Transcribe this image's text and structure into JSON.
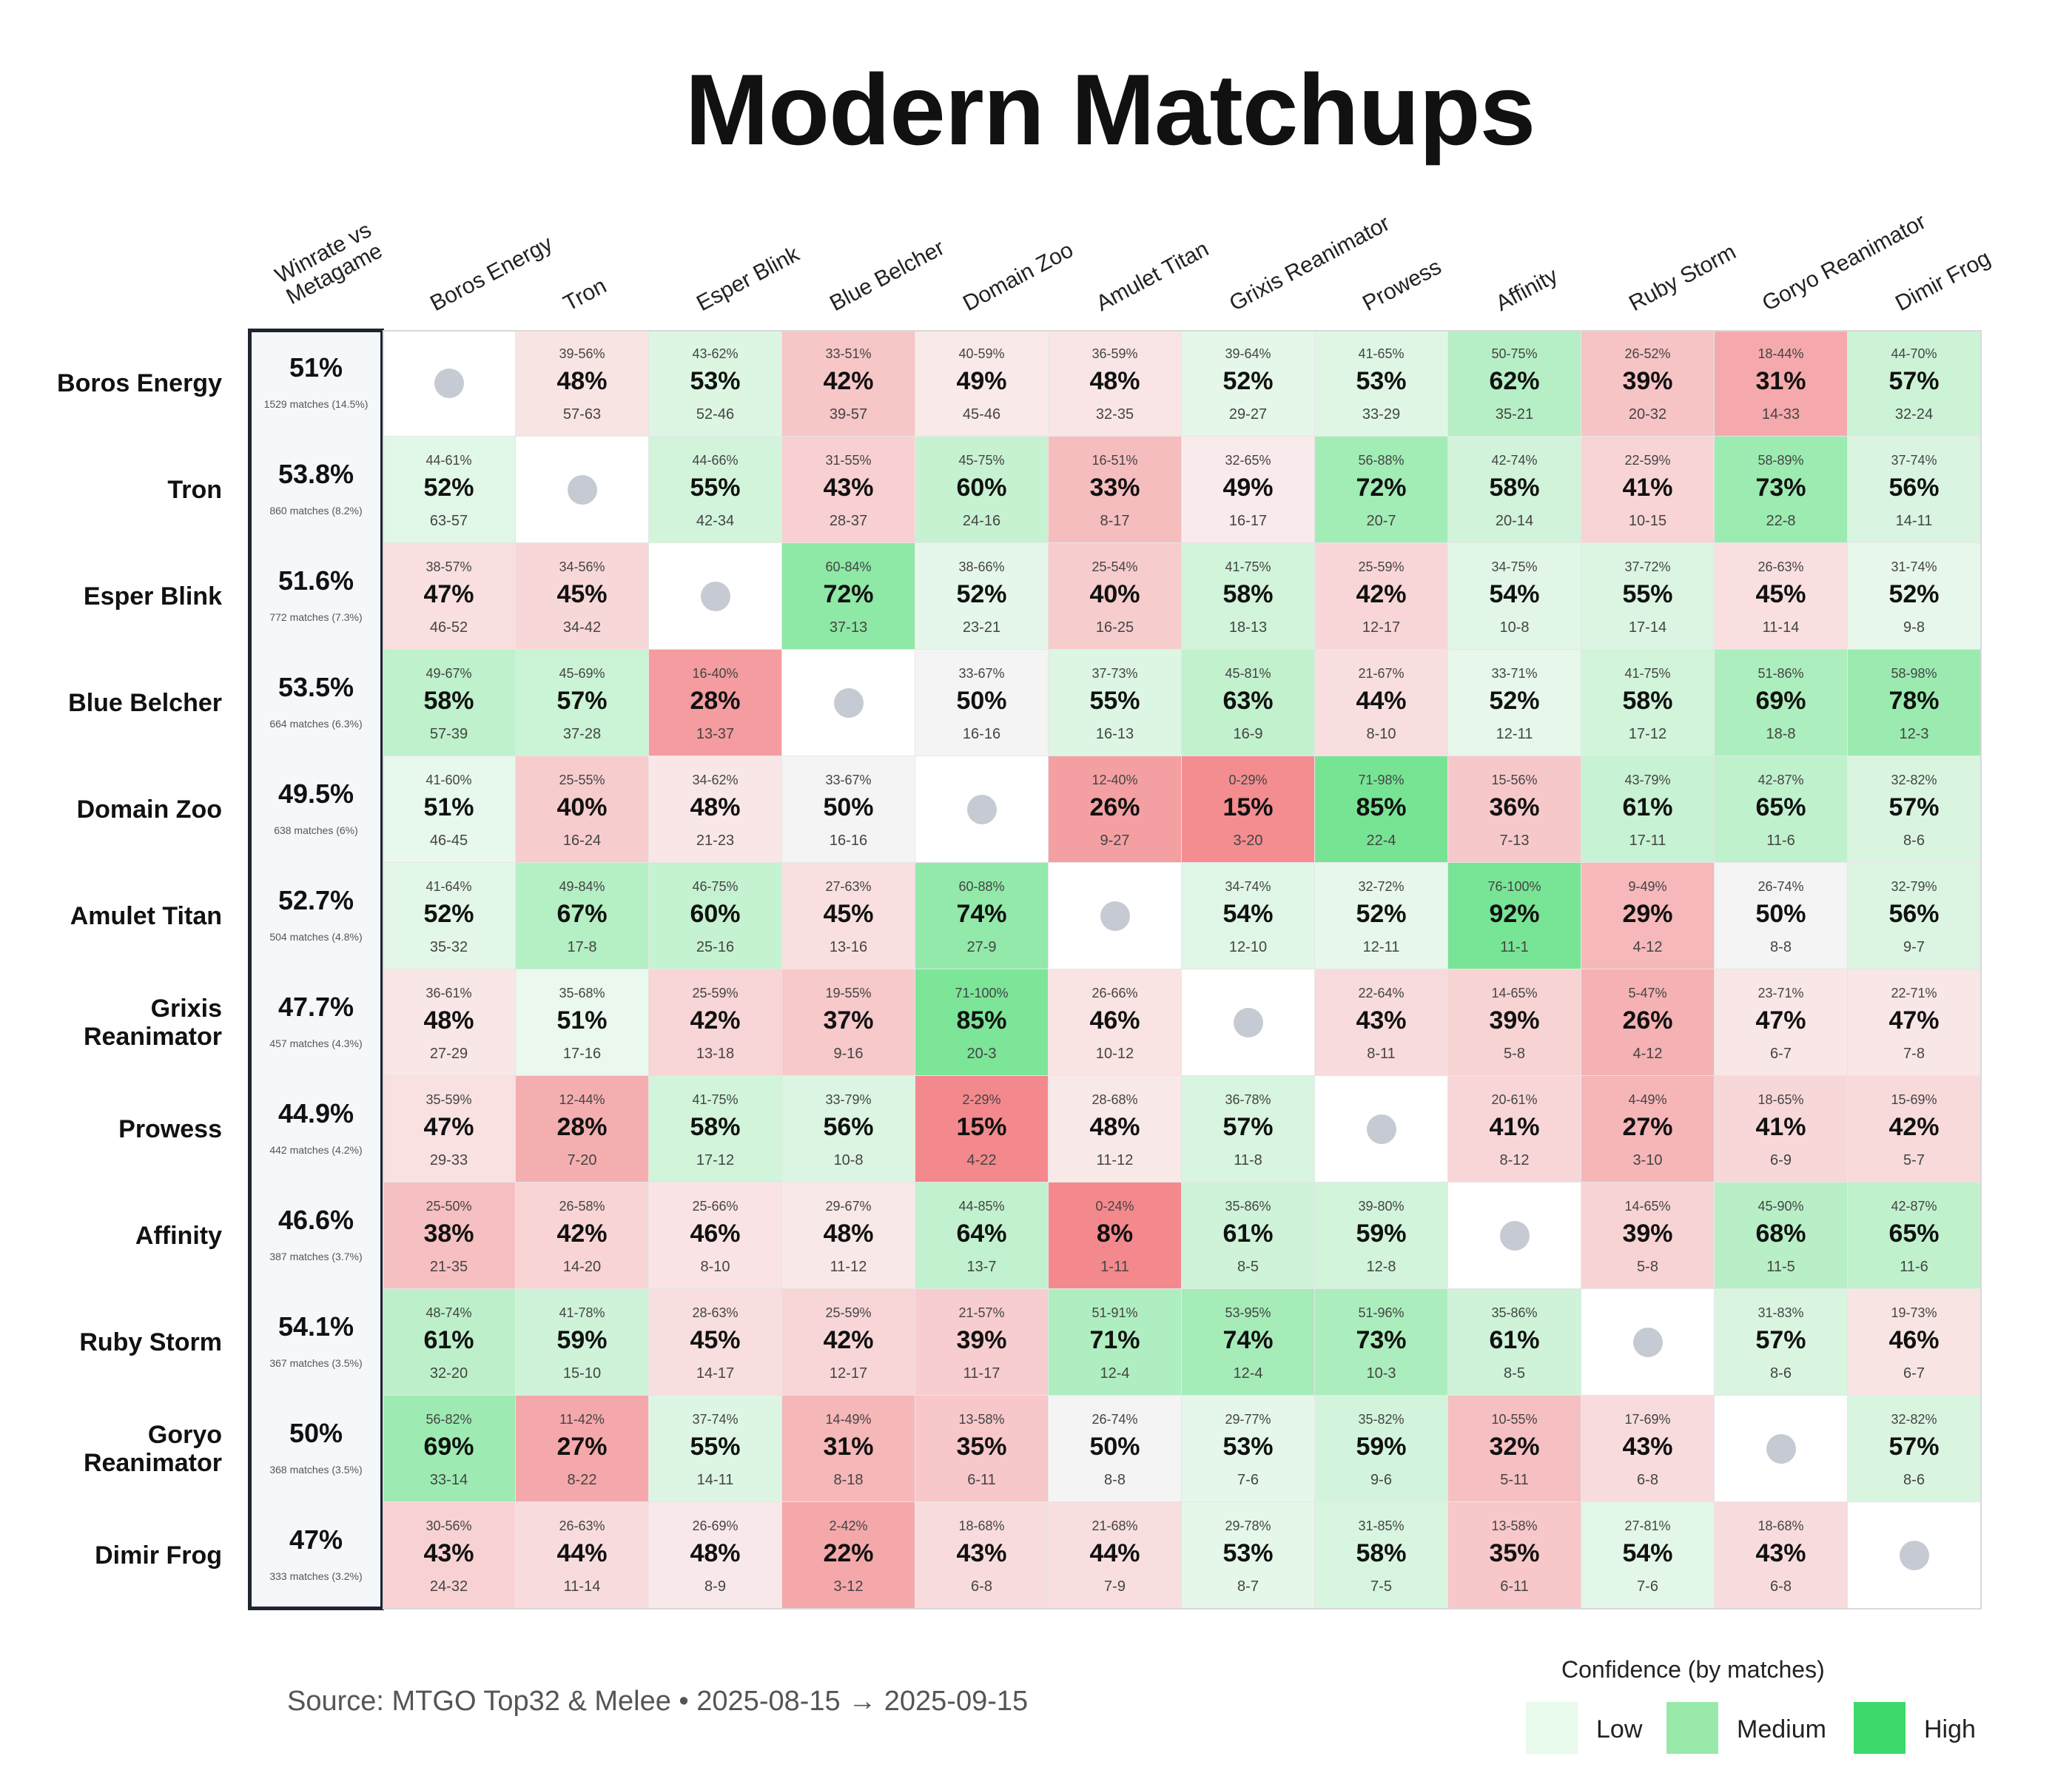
{
  "title": "Modern Matchups",
  "source_text": "Source: MTGO Top32 & Melee  •  2025-08-15 → 2025-09-15",
  "legend": {
    "title": "Confidence (by matches)",
    "items": [
      {
        "label": "Low",
        "color": "#e8faec"
      },
      {
        "label": "Medium",
        "color": "#98e9aa"
      },
      {
        "label": "High",
        "color": "#3dd96a"
      }
    ]
  },
  "chart_data": {
    "type": "heatmap",
    "winrate_header": [
      "Winrate vs",
      "Metagame"
    ],
    "columns": [
      "Boros Energy",
      "Tron",
      "Esper Blink",
      "Blue Belcher",
      "Domain Zoo",
      "Amulet Titan",
      "Grixis Reanimator",
      "Prowess",
      "Affinity",
      "Ruby Storm",
      "Goryo Reanimator",
      "Dimir Frog"
    ],
    "rows": [
      {
        "label": "Boros Energy",
        "label_lines": [
          "Boros Energy"
        ],
        "winrate": "51%",
        "matches": "1529 matches (14.5%)",
        "cells": [
          null,
          {
            "ci": "39-56%",
            "pct": 48,
            "rec": "57-63"
          },
          {
            "ci": "43-62%",
            "pct": 53,
            "rec": "52-46"
          },
          {
            "ci": "33-51%",
            "pct": 42,
            "rec": "39-57"
          },
          {
            "ci": "40-59%",
            "pct": 49,
            "rec": "45-46"
          },
          {
            "ci": "36-59%",
            "pct": 48,
            "rec": "32-35"
          },
          {
            "ci": "39-64%",
            "pct": 52,
            "rec": "29-27"
          },
          {
            "ci": "41-65%",
            "pct": 53,
            "rec": "33-29"
          },
          {
            "ci": "50-75%",
            "pct": 62,
            "rec": "35-21"
          },
          {
            "ci": "26-52%",
            "pct": 39,
            "rec": "20-32"
          },
          {
            "ci": "18-44%",
            "pct": 31,
            "rec": "14-33"
          },
          {
            "ci": "44-70%",
            "pct": 57,
            "rec": "32-24"
          }
        ]
      },
      {
        "label": "Tron",
        "label_lines": [
          "Tron"
        ],
        "winrate": "53.8%",
        "matches": "860 matches (8.2%)",
        "cells": [
          {
            "ci": "44-61%",
            "pct": 52,
            "rec": "63-57"
          },
          null,
          {
            "ci": "44-66%",
            "pct": 55,
            "rec": "42-34"
          },
          {
            "ci": "31-55%",
            "pct": 43,
            "rec": "28-37"
          },
          {
            "ci": "45-75%",
            "pct": 60,
            "rec": "24-16"
          },
          {
            "ci": "16-51%",
            "pct": 33,
            "rec": "8-17"
          },
          {
            "ci": "32-65%",
            "pct": 49,
            "rec": "16-17"
          },
          {
            "ci": "56-88%",
            "pct": 72,
            "rec": "20-7"
          },
          {
            "ci": "42-74%",
            "pct": 58,
            "rec": "20-14"
          },
          {
            "ci": "22-59%",
            "pct": 41,
            "rec": "10-15"
          },
          {
            "ci": "58-89%",
            "pct": 73,
            "rec": "22-8"
          },
          {
            "ci": "37-74%",
            "pct": 56,
            "rec": "14-11"
          }
        ]
      },
      {
        "label": "Esper Blink",
        "label_lines": [
          "Esper Blink"
        ],
        "winrate": "51.6%",
        "matches": "772 matches (7.3%)",
        "cells": [
          {
            "ci": "38-57%",
            "pct": 47,
            "rec": "46-52"
          },
          {
            "ci": "34-56%",
            "pct": 45,
            "rec": "34-42"
          },
          null,
          {
            "ci": "60-84%",
            "pct": 72,
            "rec": "37-13"
          },
          {
            "ci": "38-66%",
            "pct": 52,
            "rec": "23-21"
          },
          {
            "ci": "25-54%",
            "pct": 40,
            "rec": "16-25"
          },
          {
            "ci": "41-75%",
            "pct": 58,
            "rec": "18-13"
          },
          {
            "ci": "25-59%",
            "pct": 42,
            "rec": "12-17"
          },
          {
            "ci": "34-75%",
            "pct": 54,
            "rec": "10-8"
          },
          {
            "ci": "37-72%",
            "pct": 55,
            "rec": "17-14"
          },
          {
            "ci": "26-63%",
            "pct": 45,
            "rec": "11-14"
          },
          {
            "ci": "31-74%",
            "pct": 52,
            "rec": "9-8"
          }
        ]
      },
      {
        "label": "Blue Belcher",
        "label_lines": [
          "Blue Belcher"
        ],
        "winrate": "53.5%",
        "matches": "664 matches (6.3%)",
        "cells": [
          {
            "ci": "49-67%",
            "pct": 58,
            "rec": "57-39"
          },
          {
            "ci": "45-69%",
            "pct": 57,
            "rec": "37-28"
          },
          {
            "ci": "16-40%",
            "pct": 28,
            "rec": "13-37"
          },
          null,
          {
            "ci": "33-67%",
            "pct": 50,
            "rec": "16-16"
          },
          {
            "ci": "37-73%",
            "pct": 55,
            "rec": "16-13"
          },
          {
            "ci": "45-81%",
            "pct": 63,
            "rec": "16-9"
          },
          {
            "ci": "21-67%",
            "pct": 44,
            "rec": "8-10"
          },
          {
            "ci": "33-71%",
            "pct": 52,
            "rec": "12-11"
          },
          {
            "ci": "41-75%",
            "pct": 58,
            "rec": "17-12"
          },
          {
            "ci": "51-86%",
            "pct": 69,
            "rec": "18-8"
          },
          {
            "ci": "58-98%",
            "pct": 78,
            "rec": "12-3"
          }
        ]
      },
      {
        "label": "Domain Zoo",
        "label_lines": [
          "Domain Zoo"
        ],
        "winrate": "49.5%",
        "matches": "638 matches (6%)",
        "cells": [
          {
            "ci": "41-60%",
            "pct": 51,
            "rec": "46-45"
          },
          {
            "ci": "25-55%",
            "pct": 40,
            "rec": "16-24"
          },
          {
            "ci": "34-62%",
            "pct": 48,
            "rec": "21-23"
          },
          {
            "ci": "33-67%",
            "pct": 50,
            "rec": "16-16"
          },
          null,
          {
            "ci": "12-40%",
            "pct": 26,
            "rec": "9-27"
          },
          {
            "ci": "0-29%",
            "pct": 15,
            "rec": "3-20"
          },
          {
            "ci": "71-98%",
            "pct": 85,
            "rec": "22-4"
          },
          {
            "ci": "15-56%",
            "pct": 36,
            "rec": "7-13"
          },
          {
            "ci": "43-79%",
            "pct": 61,
            "rec": "17-11"
          },
          {
            "ci": "42-87%",
            "pct": 65,
            "rec": "11-6"
          },
          {
            "ci": "32-82%",
            "pct": 57,
            "rec": "8-6"
          }
        ]
      },
      {
        "label": "Amulet Titan",
        "label_lines": [
          "Amulet Titan"
        ],
        "winrate": "52.7%",
        "matches": "504 matches (4.8%)",
        "cells": [
          {
            "ci": "41-64%",
            "pct": 52,
            "rec": "35-32"
          },
          {
            "ci": "49-84%",
            "pct": 67,
            "rec": "17-8"
          },
          {
            "ci": "46-75%",
            "pct": 60,
            "rec": "25-16"
          },
          {
            "ci": "27-63%",
            "pct": 45,
            "rec": "13-16"
          },
          {
            "ci": "60-88%",
            "pct": 74,
            "rec": "27-9"
          },
          null,
          {
            "ci": "34-74%",
            "pct": 54,
            "rec": "12-10"
          },
          {
            "ci": "32-72%",
            "pct": 52,
            "rec": "12-11"
          },
          {
            "ci": "76-100%",
            "pct": 92,
            "rec": "11-1"
          },
          {
            "ci": "9-49%",
            "pct": 29,
            "rec": "4-12"
          },
          {
            "ci": "26-74%",
            "pct": 50,
            "rec": "8-8"
          },
          {
            "ci": "32-79%",
            "pct": 56,
            "rec": "9-7"
          }
        ]
      },
      {
        "label": "Grixis Reanimator",
        "label_lines": [
          "Grixis",
          "Reanimator"
        ],
        "winrate": "47.7%",
        "matches": "457 matches (4.3%)",
        "cells": [
          {
            "ci": "36-61%",
            "pct": 48,
            "rec": "27-29"
          },
          {
            "ci": "35-68%",
            "pct": 51,
            "rec": "17-16"
          },
          {
            "ci": "25-59%",
            "pct": 42,
            "rec": "13-18"
          },
          {
            "ci": "19-55%",
            "pct": 37,
            "rec": "9-16"
          },
          {
            "ci": "71-100%",
            "pct": 85,
            "rec": "20-3"
          },
          {
            "ci": "26-66%",
            "pct": 46,
            "rec": "10-12"
          },
          null,
          {
            "ci": "22-64%",
            "pct": 43,
            "rec": "8-11"
          },
          {
            "ci": "14-65%",
            "pct": 39,
            "rec": "5-8"
          },
          {
            "ci": "5-47%",
            "pct": 26,
            "rec": "4-12"
          },
          {
            "ci": "23-71%",
            "pct": 47,
            "rec": "6-7"
          },
          {
            "ci": "22-71%",
            "pct": 47,
            "rec": "7-8"
          }
        ]
      },
      {
        "label": "Prowess",
        "label_lines": [
          "Prowess"
        ],
        "winrate": "44.9%",
        "matches": "442 matches (4.2%)",
        "cells": [
          {
            "ci": "35-59%",
            "pct": 47,
            "rec": "29-33"
          },
          {
            "ci": "12-44%",
            "pct": 28,
            "rec": "7-20"
          },
          {
            "ci": "41-75%",
            "pct": 58,
            "rec": "17-12"
          },
          {
            "ci": "33-79%",
            "pct": 56,
            "rec": "10-8"
          },
          {
            "ci": "2-29%",
            "pct": 15,
            "rec": "4-22"
          },
          {
            "ci": "28-68%",
            "pct": 48,
            "rec": "11-12"
          },
          {
            "ci": "36-78%",
            "pct": 57,
            "rec": "11-8"
          },
          null,
          {
            "ci": "20-61%",
            "pct": 41,
            "rec": "8-12"
          },
          {
            "ci": "4-49%",
            "pct": 27,
            "rec": "3-10"
          },
          {
            "ci": "18-65%",
            "pct": 41,
            "rec": "6-9"
          },
          {
            "ci": "15-69%",
            "pct": 42,
            "rec": "5-7"
          }
        ]
      },
      {
        "label": "Affinity",
        "label_lines": [
          "Affinity"
        ],
        "winrate": "46.6%",
        "matches": "387 matches (3.7%)",
        "cells": [
          {
            "ci": "25-50%",
            "pct": 38,
            "rec": "21-35"
          },
          {
            "ci": "26-58%",
            "pct": 42,
            "rec": "14-20"
          },
          {
            "ci": "25-66%",
            "pct": 46,
            "rec": "8-10"
          },
          {
            "ci": "29-67%",
            "pct": 48,
            "rec": "11-12"
          },
          {
            "ci": "44-85%",
            "pct": 64,
            "rec": "13-7"
          },
          {
            "ci": "0-24%",
            "pct": 8,
            "rec": "1-11"
          },
          {
            "ci": "35-86%",
            "pct": 61,
            "rec": "8-5"
          },
          {
            "ci": "39-80%",
            "pct": 59,
            "rec": "12-8"
          },
          null,
          {
            "ci": "14-65%",
            "pct": 39,
            "rec": "5-8"
          },
          {
            "ci": "45-90%",
            "pct": 68,
            "rec": "11-5"
          },
          {
            "ci": "42-87%",
            "pct": 65,
            "rec": "11-6"
          }
        ]
      },
      {
        "label": "Ruby Storm",
        "label_lines": [
          "Ruby Storm"
        ],
        "winrate": "54.1%",
        "matches": "367 matches (3.5%)",
        "cells": [
          {
            "ci": "48-74%",
            "pct": 61,
            "rec": "32-20"
          },
          {
            "ci": "41-78%",
            "pct": 59,
            "rec": "15-10"
          },
          {
            "ci": "28-63%",
            "pct": 45,
            "rec": "14-17"
          },
          {
            "ci": "25-59%",
            "pct": 42,
            "rec": "12-17"
          },
          {
            "ci": "21-57%",
            "pct": 39,
            "rec": "11-17"
          },
          {
            "ci": "51-91%",
            "pct": 71,
            "rec": "12-4"
          },
          {
            "ci": "53-95%",
            "pct": 74,
            "rec": "12-4"
          },
          {
            "ci": "51-96%",
            "pct": 73,
            "rec": "10-3"
          },
          {
            "ci": "35-86%",
            "pct": 61,
            "rec": "8-5"
          },
          null,
          {
            "ci": "31-83%",
            "pct": 57,
            "rec": "8-6"
          },
          {
            "ci": "19-73%",
            "pct": 46,
            "rec": "6-7"
          }
        ]
      },
      {
        "label": "Goryo Reanimator",
        "label_lines": [
          "Goryo",
          "Reanimator"
        ],
        "winrate": "50%",
        "matches": "368 matches (3.5%)",
        "cells": [
          {
            "ci": "56-82%",
            "pct": 69,
            "rec": "33-14"
          },
          {
            "ci": "11-42%",
            "pct": 27,
            "rec": "8-22"
          },
          {
            "ci": "37-74%",
            "pct": 55,
            "rec": "14-11"
          },
          {
            "ci": "14-49%",
            "pct": 31,
            "rec": "8-18"
          },
          {
            "ci": "13-58%",
            "pct": 35,
            "rec": "6-11"
          },
          {
            "ci": "26-74%",
            "pct": 50,
            "rec": "8-8"
          },
          {
            "ci": "29-77%",
            "pct": 53,
            "rec": "7-6"
          },
          {
            "ci": "35-82%",
            "pct": 59,
            "rec": "9-6"
          },
          {
            "ci": "10-55%",
            "pct": 32,
            "rec": "5-11"
          },
          {
            "ci": "17-69%",
            "pct": 43,
            "rec": "6-8"
          },
          null,
          {
            "ci": "32-82%",
            "pct": 57,
            "rec": "8-6"
          }
        ]
      },
      {
        "label": "Dimir Frog",
        "label_lines": [
          "Dimir Frog"
        ],
        "winrate": "47%",
        "matches": "333 matches (3.2%)",
        "cells": [
          {
            "ci": "30-56%",
            "pct": 43,
            "rec": "24-32"
          },
          {
            "ci": "26-63%",
            "pct": 44,
            "rec": "11-14"
          },
          {
            "ci": "26-69%",
            "pct": 48,
            "rec": "8-9"
          },
          {
            "ci": "2-42%",
            "pct": 22,
            "rec": "3-12"
          },
          {
            "ci": "18-68%",
            "pct": 43,
            "rec": "6-8"
          },
          {
            "ci": "21-68%",
            "pct": 44,
            "rec": "7-9"
          },
          {
            "ci": "29-78%",
            "pct": 53,
            "rec": "8-7"
          },
          {
            "ci": "31-85%",
            "pct": 58,
            "rec": "7-5"
          },
          {
            "ci": "13-58%",
            "pct": 35,
            "rec": "6-11"
          },
          {
            "ci": "27-81%",
            "pct": 54,
            "rec": "7-6"
          },
          {
            "ci": "18-68%",
            "pct": 43,
            "rec": "6-8"
          },
          null
        ]
      }
    ]
  }
}
